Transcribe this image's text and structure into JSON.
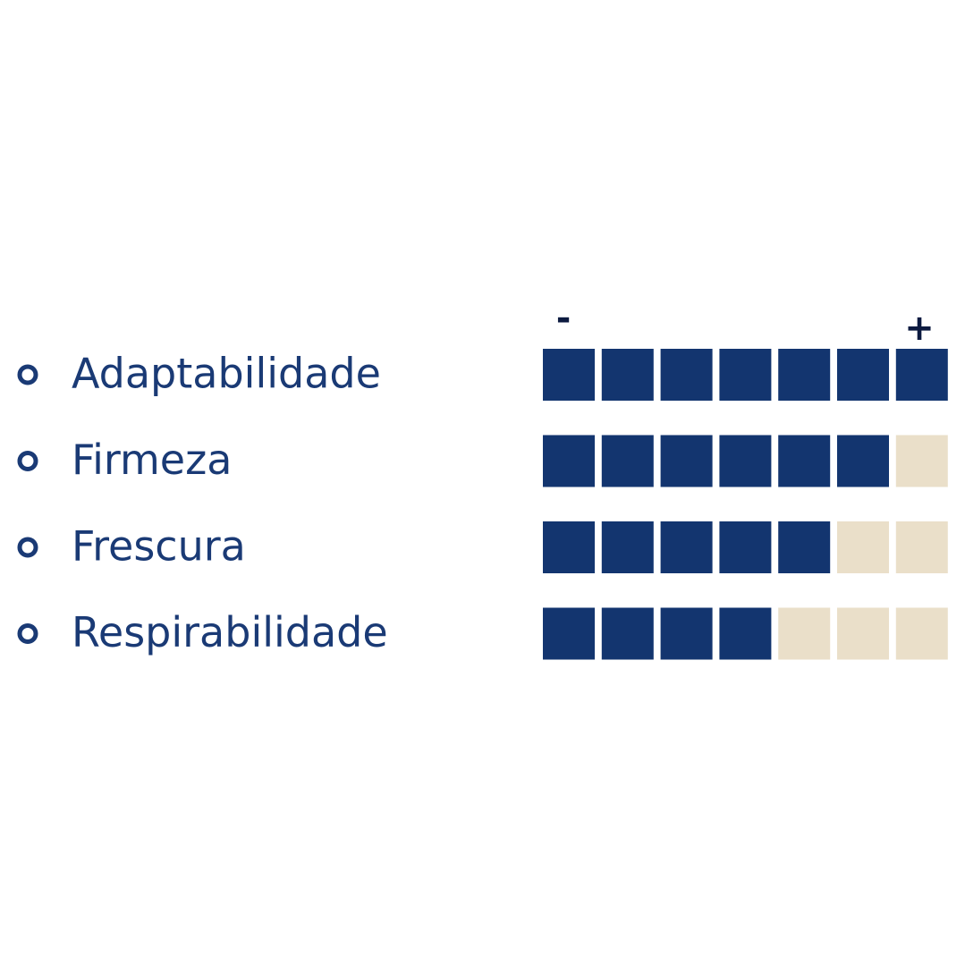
{
  "scale": {
    "min_label": "-",
    "max_label": "+",
    "max": 7,
    "filled_color": "#13356f",
    "empty_color": "#eadfc9"
  },
  "ratings": [
    {
      "label": "Adaptabilidade",
      "value": 7
    },
    {
      "label": "Firmeza",
      "value": 6
    },
    {
      "label": "Frescura",
      "value": 5
    },
    {
      "label": "Respirabilidade",
      "value": 4
    }
  ]
}
